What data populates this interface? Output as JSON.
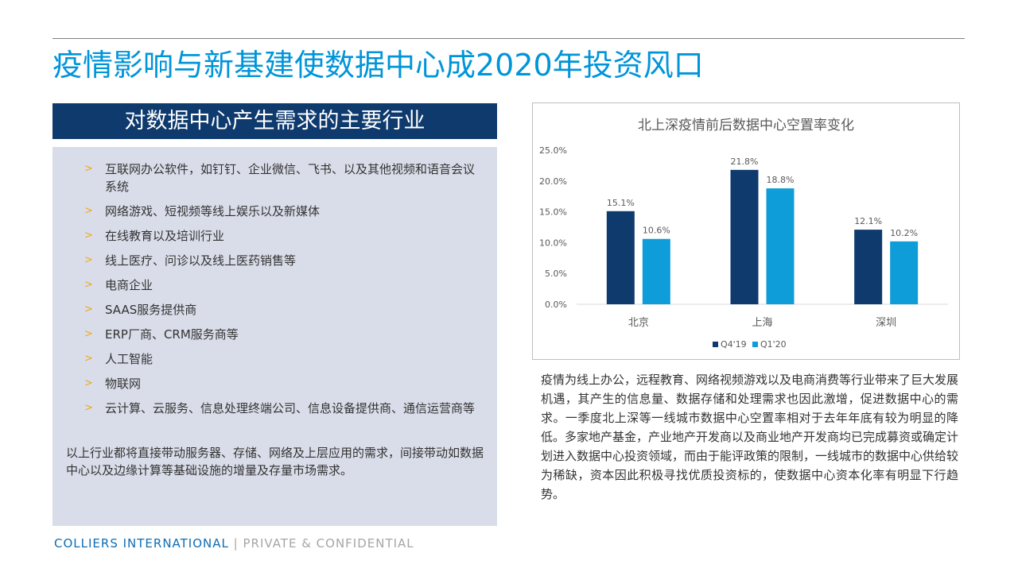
{
  "page": {
    "title": "疫情影响与新基建使数据中心成2020年投资风口"
  },
  "left": {
    "header": "对数据中心产生需求的主要行业",
    "bullet_symbol": ">",
    "items": [
      "互联网办公软件，如钉钉、企业微信、飞书、以及其他视频和语音会议系统",
      "网络游戏、短视频等线上娱乐以及新媒体",
      "在线教育以及培训行业",
      "线上医疗、问诊以及线上医药销售等",
      "电商企业",
      "SAAS服务提供商",
      "ERP厂商、CRM服务商等",
      "人工智能",
      "物联网",
      "云计算、云服务、信息处理终端公司、信息设备提供商、通信运营商等"
    ],
    "summary": "以上行业都将直接带动服务器、存储、网络及上层应用的需求，间接带动如数据中心以及边缘计算等基础设施的增量及存量市场需求。"
  },
  "chart_data": {
    "type": "bar",
    "title": "北上深疫情前后数据中心空置率变化",
    "categories": [
      "北京",
      "上海",
      "深圳"
    ],
    "series": [
      {
        "name": "Q4'19",
        "values": [
          15.1,
          21.8,
          12.1
        ],
        "labels": [
          "15.1%",
          "21.8%",
          "12.1%"
        ],
        "color": "#0e3a6e"
      },
      {
        "name": "Q1'20",
        "values": [
          10.6,
          18.8,
          10.2
        ],
        "labels": [
          "10.6%",
          "18.8%",
          "10.2%"
        ],
        "color": "#0e9dd8"
      }
    ],
    "ylim": [
      0,
      25
    ],
    "yticks": [
      0,
      5,
      10,
      15,
      20,
      25
    ],
    "ytick_labels": [
      "0.0%",
      "5.0%",
      "10.0%",
      "15.0%",
      "20.0%",
      "25.0%"
    ],
    "legend_position": "bottom",
    "grid": false
  },
  "right": {
    "description": "疫情为线上办公，远程教育、网络视频游戏以及电商消费等行业带来了巨大发展机遇，其产生的信息量、数据存储和处理需求也因此激增，促进数据中心的需求。一季度北上深等一线城市数据中心空置率相对于去年年底有较为明显的降低。多家地产基金，产业地产开发商以及商业地产开发商均已完成募资或确定计划进入数据中心投资领域，而由于能评政策的限制，一线城市的数据中心供给较为稀缺，资本因此积极寻找优质投资标的，使数据中心资本化率有明显下行趋势。"
  },
  "footer": {
    "brand": "COLLIERS INTERNATIONAL",
    "separator": "|",
    "confidential": "PRIVATE & CONFIDENTIAL"
  },
  "colors": {
    "title_blue": "#0095d9",
    "navy": "#0e3a6e",
    "light_blue": "#0e9dd8",
    "panel_bg": "#d9dde9",
    "bullet_orange": "#f0a818",
    "footer_blue": "#0e6db5"
  }
}
